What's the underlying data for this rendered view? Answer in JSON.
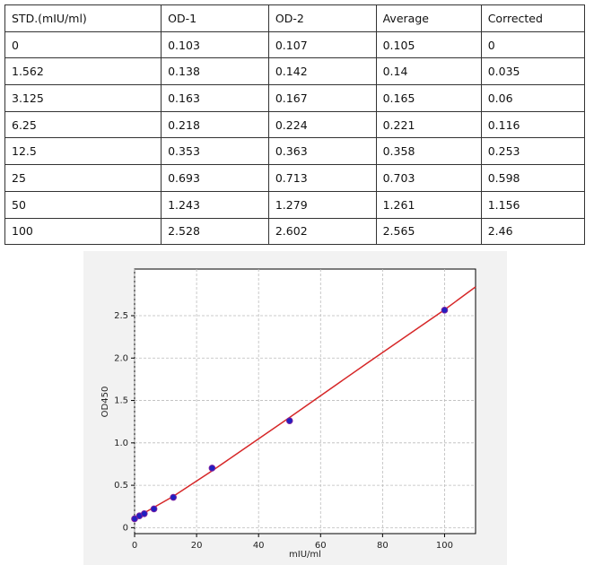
{
  "table": {
    "header": [
      "STD.(mIU/ml)",
      "OD-1",
      "OD-2",
      "Average",
      "Corrected"
    ],
    "rows": [
      [
        "0",
        "0.103",
        "0.107",
        "0.105",
        "0"
      ],
      [
        "1.562",
        "0.138",
        "0.142",
        "0.14",
        "0.035"
      ],
      [
        "3.125",
        "0.163",
        "0.167",
        "0.165",
        "0.06"
      ],
      [
        "6.25",
        "0.218",
        "0.224",
        "0.221",
        "0.116"
      ],
      [
        "12.5",
        "0.353",
        "0.363",
        "0.358",
        "0.253"
      ],
      [
        "25",
        "0.693",
        "0.713",
        "0.703",
        "0.598"
      ],
      [
        "50",
        "1.243",
        "1.279",
        "1.261",
        "1.156"
      ],
      [
        "100",
        "2.528",
        "2.602",
        "2.565",
        "2.46"
      ]
    ]
  },
  "chart_data": {
    "type": "scatter",
    "xlabel": "mIU/ml",
    "ylabel": "OD450",
    "x": [
      0,
      1.562,
      3.125,
      6.25,
      12.5,
      25,
      50,
      100
    ],
    "series": [
      {
        "color": "#2020c0",
        "values": [
          0.105,
          0.14,
          0.165,
          0.221,
          0.358,
          0.703,
          1.261,
          2.565
        ]
      }
    ],
    "fit": {
      "color": "#d62728",
      "x": [
        0,
        12.5,
        25,
        50,
        75,
        100,
        110
      ],
      "values": [
        0.11,
        0.37,
        0.67,
        1.3,
        1.94,
        2.57,
        2.84
      ]
    },
    "xlim": [
      0,
      110
    ],
    "ylim": [
      -0.07,
      3.05
    ],
    "xticks": [
      0,
      20,
      40,
      60,
      80,
      100
    ],
    "yticks": [
      0,
      {
        "value": 0.5,
        "label": "0.5"
      },
      {
        "value": 1,
        "label": "1.0"
      },
      {
        "value": 1.5,
        "label": "1.5"
      },
      {
        "value": 2,
        "label": "2.0"
      },
      {
        "value": 2.5,
        "label": "2.5"
      }
    ],
    "grid": true
  }
}
